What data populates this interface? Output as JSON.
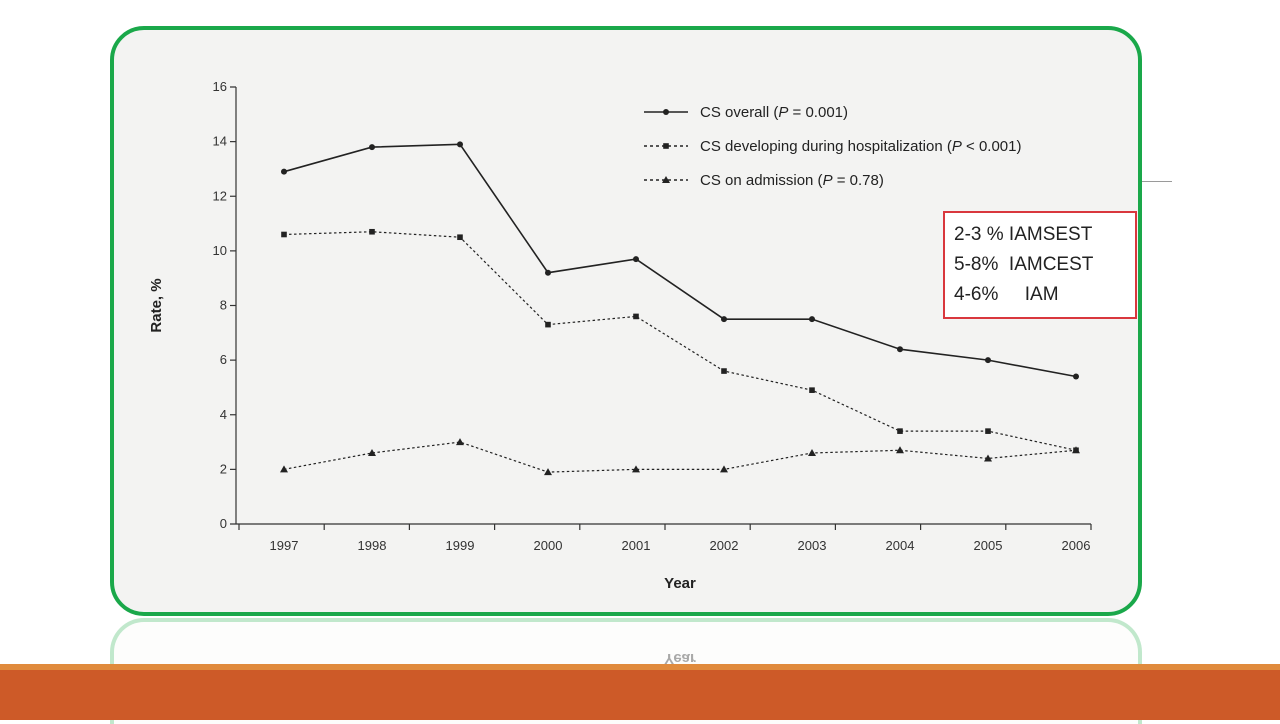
{
  "colors": {
    "frame_border": "#1aa84a",
    "annotation_border": "#d9373d",
    "bottom_band": "#cd5a28",
    "line": "#222222"
  },
  "chart_data": {
    "type": "line",
    "xlabel": "Year",
    "ylabel": "Rate, %",
    "ylim": [
      0,
      16
    ],
    "yticks": [
      0,
      2,
      4,
      6,
      8,
      10,
      12,
      14,
      16
    ],
    "categories": [
      "1997",
      "1998",
      "1999",
      "2000",
      "2001",
      "2002",
      "2003",
      "2004",
      "2005",
      "2006"
    ],
    "grid": false,
    "legend_position": "top-right",
    "series": [
      {
        "name": "CS overall (P = 0.001)",
        "name_parts": [
          "CS overall (",
          "P",
          " = 0.001)"
        ],
        "marker": "circle",
        "line_style": "solid",
        "values": [
          12.9,
          13.8,
          13.9,
          9.2,
          9.7,
          7.5,
          7.5,
          6.4,
          6.0,
          5.4
        ]
      },
      {
        "name": "CS developing during hospitalization (P < 0.001)",
        "name_parts": [
          "CS developing during hospitalization (",
          "P",
          " < 0.001)"
        ],
        "marker": "square",
        "line_style": "dotted",
        "values": [
          10.6,
          10.7,
          10.5,
          7.3,
          7.6,
          5.6,
          4.9,
          3.4,
          3.4,
          2.7
        ]
      },
      {
        "name": "CS on admission (P = 0.78)",
        "name_parts": [
          "CS on admission (",
          "P",
          " = 0.78)"
        ],
        "marker": "triangle",
        "line_style": "dotted",
        "values": [
          2.0,
          2.6,
          3.0,
          1.9,
          2.0,
          2.0,
          2.6,
          2.7,
          2.4,
          2.7
        ]
      }
    ],
    "annotation_box": {
      "lines": [
        "2-3 % IAMSEST",
        "5-8%  IAMCEST",
        "4-6%     IAM"
      ]
    }
  }
}
